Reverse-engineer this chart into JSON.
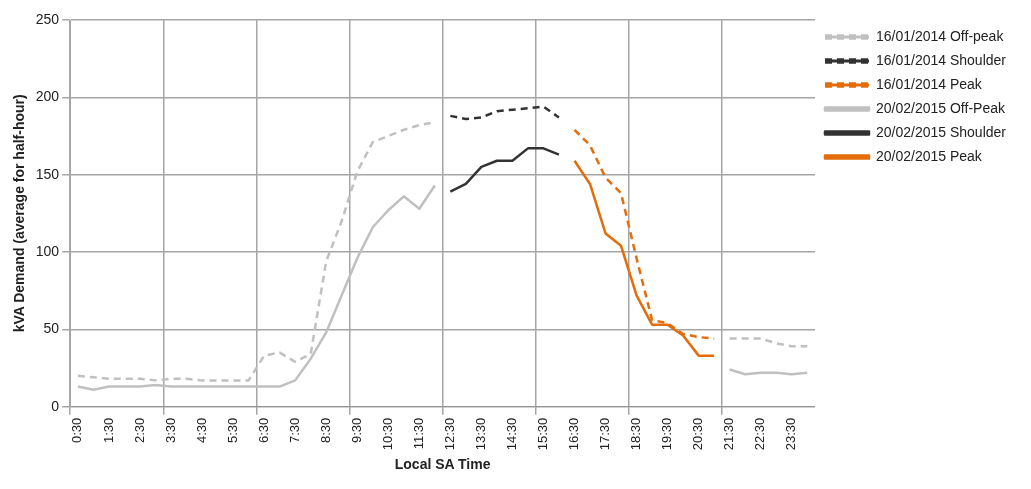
{
  "chart_data": {
    "type": "line",
    "xlabel": "Local SA Time",
    "ylabel": "kVA Demand (average for half-hour)",
    "categories": [
      "0:30",
      null,
      "1:30",
      null,
      "2:30",
      null,
      "3:30",
      null,
      "4:30",
      null,
      "5:30",
      null,
      "6:30",
      null,
      "7:30",
      null,
      "8:30",
      null,
      "9:30",
      null,
      "10:30",
      null,
      "11:30",
      null,
      "12:30",
      null,
      "13:30",
      null,
      "14:30",
      null,
      "15:30",
      null,
      "16:30",
      null,
      "17:30",
      null,
      "18:30",
      null,
      "19:30",
      null,
      "20:30",
      null,
      "21:30",
      null,
      "22:30",
      null,
      "23:30",
      null
    ],
    "series": [
      {
        "name": "16/01/2014 Off-peak",
        "color": "#c0c0c0",
        "line_style": "dashed",
        "values": [
          20,
          19,
          18,
          18,
          18,
          17,
          18,
          18,
          17,
          17,
          17,
          17,
          33,
          35,
          29,
          34,
          94,
          120,
          152,
          171,
          175,
          179,
          182,
          184,
          null,
          null,
          null,
          null,
          null,
          null,
          null,
          null,
          null,
          null,
          null,
          null,
          null,
          null,
          null,
          null,
          null,
          null,
          44,
          44,
          44,
          41,
          39,
          39
        ]
      },
      {
        "name": "16/01/2014 Shoulder",
        "color": "#333333",
        "line_style": "dashed",
        "values": [
          null,
          null,
          null,
          null,
          null,
          null,
          null,
          null,
          null,
          null,
          null,
          null,
          null,
          null,
          null,
          null,
          null,
          null,
          null,
          null,
          null,
          null,
          null,
          null,
          188,
          186,
          187,
          191,
          192,
          193,
          194,
          187,
          null,
          null,
          null,
          null,
          null,
          null,
          null,
          null,
          null,
          null,
          null,
          null,
          null,
          null,
          null,
          null
        ]
      },
      {
        "name": "16/01/2014 Peak",
        "color": "#e46c0a",
        "line_style": "dashed",
        "values": [
          null,
          null,
          null,
          null,
          null,
          null,
          null,
          null,
          null,
          null,
          null,
          null,
          null,
          null,
          null,
          null,
          null,
          null,
          null,
          null,
          null,
          null,
          null,
          null,
          null,
          null,
          null,
          null,
          null,
          null,
          null,
          null,
          179,
          169,
          148,
          138,
          96,
          56,
          54,
          47,
          45,
          44,
          null,
          null,
          null,
          null,
          null,
          null
        ]
      },
      {
        "name": "20/02/2015 Off-Peak",
        "color": "#c0c0c0",
        "line_style": "solid",
        "values": [
          13,
          11,
          13,
          13,
          13,
          14,
          13,
          13,
          13,
          13,
          13,
          13,
          13,
          13,
          17,
          31,
          48,
          72,
          96,
          116,
          127,
          136,
          128,
          143,
          null,
          null,
          null,
          null,
          null,
          null,
          null,
          null,
          null,
          null,
          null,
          null,
          null,
          null,
          null,
          null,
          null,
          null,
          24,
          21,
          22,
          22,
          21,
          22
        ]
      },
      {
        "name": "20/02/2015 Shoulder",
        "color": "#333333",
        "line_style": "solid",
        "values": [
          null,
          null,
          null,
          null,
          null,
          null,
          null,
          null,
          null,
          null,
          null,
          null,
          null,
          null,
          null,
          null,
          null,
          null,
          null,
          null,
          null,
          null,
          null,
          null,
          139,
          144,
          155,
          159,
          159,
          167,
          167,
          163,
          null,
          null,
          null,
          null,
          null,
          null,
          null,
          null,
          null,
          null,
          null,
          null,
          null,
          null,
          null,
          null
        ]
      },
      {
        "name": "20/02/2015 Peak",
        "color": "#e46c0a",
        "line_style": "solid",
        "values": [
          null,
          null,
          null,
          null,
          null,
          null,
          null,
          null,
          null,
          null,
          null,
          null,
          null,
          null,
          null,
          null,
          null,
          null,
          null,
          null,
          null,
          null,
          null,
          null,
          null,
          null,
          null,
          null,
          null,
          null,
          null,
          null,
          159,
          144,
          112,
          104,
          72,
          53,
          53,
          46,
          33,
          33,
          null,
          null,
          null,
          null,
          null,
          null
        ]
      }
    ],
    "ylim": [
      0,
      250
    ],
    "yticks": [
      0,
      50,
      100,
      150,
      200,
      250
    ],
    "grid": true,
    "legend": "top right",
    "marker": "none"
  }
}
